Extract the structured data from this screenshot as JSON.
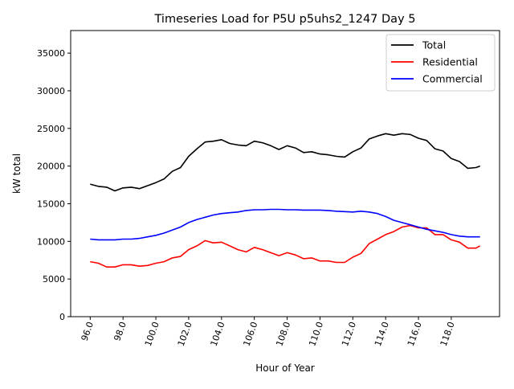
{
  "chart_data": {
    "type": "line",
    "title": "Timeseries Load for P5U p5uhs2_1247  Day 5",
    "xlabel": "Hour of Year",
    "ylabel": "kW total",
    "xlim": [
      94.81,
      120.94
    ],
    "ylim": [
      0,
      38000
    ],
    "xticks": [
      96,
      98,
      100,
      102,
      104,
      106,
      108,
      110,
      112,
      114,
      116,
      118
    ],
    "xtick_labels": [
      "96.0",
      "98.0",
      "100.0",
      "102.0",
      "104.0",
      "106.0",
      "108.0",
      "110.0",
      "112.0",
      "114.0",
      "116.0",
      "118.0"
    ],
    "yticks": [
      0,
      5000,
      10000,
      15000,
      20000,
      25000,
      30000,
      35000
    ],
    "ytick_labels": [
      "0",
      "5000",
      "10000",
      "15000",
      "20000",
      "25000",
      "30000",
      "35000"
    ],
    "grid": false,
    "legend_position": "top-right",
    "x": [
      96,
      96.5,
      97,
      97.5,
      98,
      98.5,
      99,
      99.5,
      100,
      100.5,
      101,
      101.5,
      102,
      102.5,
      103,
      103.5,
      104,
      104.5,
      105,
      105.5,
      106,
      106.5,
      107,
      107.5,
      108,
      108.5,
      109,
      109.5,
      110,
      110.5,
      111,
      111.5,
      112,
      112.5,
      113,
      113.5,
      114,
      114.5,
      115,
      115.5,
      116,
      116.5,
      117,
      117.5,
      118,
      118.5,
      119,
      119.5,
      119.75
    ],
    "series": [
      {
        "name": "Total",
        "color": "#000000",
        "values": [
          17600,
          17300,
          17200,
          16700,
          17100,
          17200,
          17000,
          17400,
          17800,
          18300,
          19300,
          19800,
          21300,
          22300,
          23200,
          23300,
          23500,
          23000,
          22800,
          22700,
          23300,
          23100,
          22700,
          22200,
          22700,
          22400,
          21800,
          21900,
          21600,
          21500,
          21300,
          21200,
          21900,
          22400,
          23600,
          24000,
          24300,
          24100,
          24300,
          24200,
          23700,
          23400,
          22300,
          22000,
          21000,
          20600,
          19700,
          19800,
          20000
        ]
      },
      {
        "name": "Residential",
        "color": "#ff0000",
        "values": [
          7300,
          7100,
          6600,
          6600,
          6900,
          6900,
          6700,
          6800,
          7100,
          7300,
          7800,
          8000,
          8900,
          9400,
          10100,
          9800,
          9900,
          9400,
          8900,
          8600,
          9200,
          8900,
          8500,
          8100,
          8500,
          8200,
          7700,
          7800,
          7400,
          7400,
          7200,
          7200,
          7900,
          8400,
          9700,
          10300,
          10900,
          11300,
          11900,
          12100,
          11800,
          11800,
          10900,
          10900,
          10200,
          9900,
          9100,
          9100,
          9400
        ]
      },
      {
        "name": "Commercial",
        "color": "#0000ff",
        "values": [
          10300,
          10200,
          10200,
          10200,
          10300,
          10300,
          10400,
          10600,
          10800,
          11100,
          11500,
          11900,
          12500,
          12900,
          13200,
          13500,
          13700,
          13800,
          13900,
          14100,
          14200,
          14200,
          14250,
          14250,
          14200,
          14200,
          14150,
          14150,
          14150,
          14100,
          14000,
          13950,
          13900,
          14000,
          13900,
          13700,
          13300,
          12800,
          12500,
          12200,
          11900,
          11600,
          11400,
          11200,
          10900,
          10700,
          10600,
          10600,
          10600
        ]
      }
    ]
  }
}
